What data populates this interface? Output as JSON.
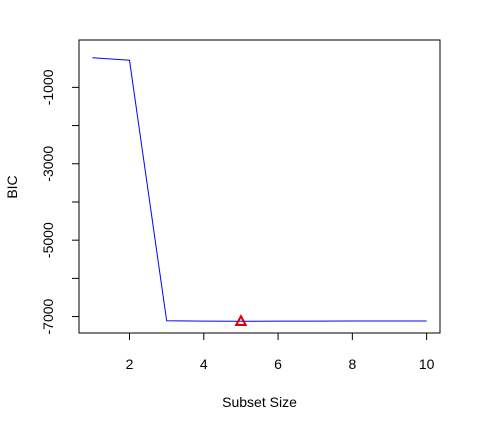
{
  "chart_data": {
    "type": "line",
    "xlabel": "Subset Size",
    "ylabel": "BIC",
    "x": [
      1,
      2,
      3,
      4,
      5,
      6,
      7,
      8,
      9,
      10
    ],
    "series": [
      {
        "color": "#0000ff",
        "values": [
          -225,
          -290,
          -7110,
          -7118,
          -7122,
          -7120,
          -7118,
          -7116,
          -7116,
          -7116
        ]
      }
    ],
    "highlight": {
      "x": 5,
      "y": -7122,
      "marker": "triangle",
      "color": "#dd0000"
    },
    "xlim": [
      0.64,
      10.36
    ],
    "ylim": [
      -7430,
      240
    ],
    "x_ticks": [
      {
        "value": 2,
        "label": "2"
      },
      {
        "value": 4,
        "label": "4"
      },
      {
        "value": 6,
        "label": "6"
      },
      {
        "value": 8,
        "label": "8"
      },
      {
        "value": 10,
        "label": "10"
      }
    ],
    "y_ticks": [
      {
        "value": -1000,
        "label": "-1000"
      },
      {
        "value": -2000,
        "label": ""
      },
      {
        "value": -3000,
        "label": "-3000"
      },
      {
        "value": -4000,
        "label": ""
      },
      {
        "value": -5000,
        "label": "-5000"
      },
      {
        "value": -6000,
        "label": ""
      },
      {
        "value": -7000,
        "label": "-7000"
      }
    ],
    "grid": false
  }
}
